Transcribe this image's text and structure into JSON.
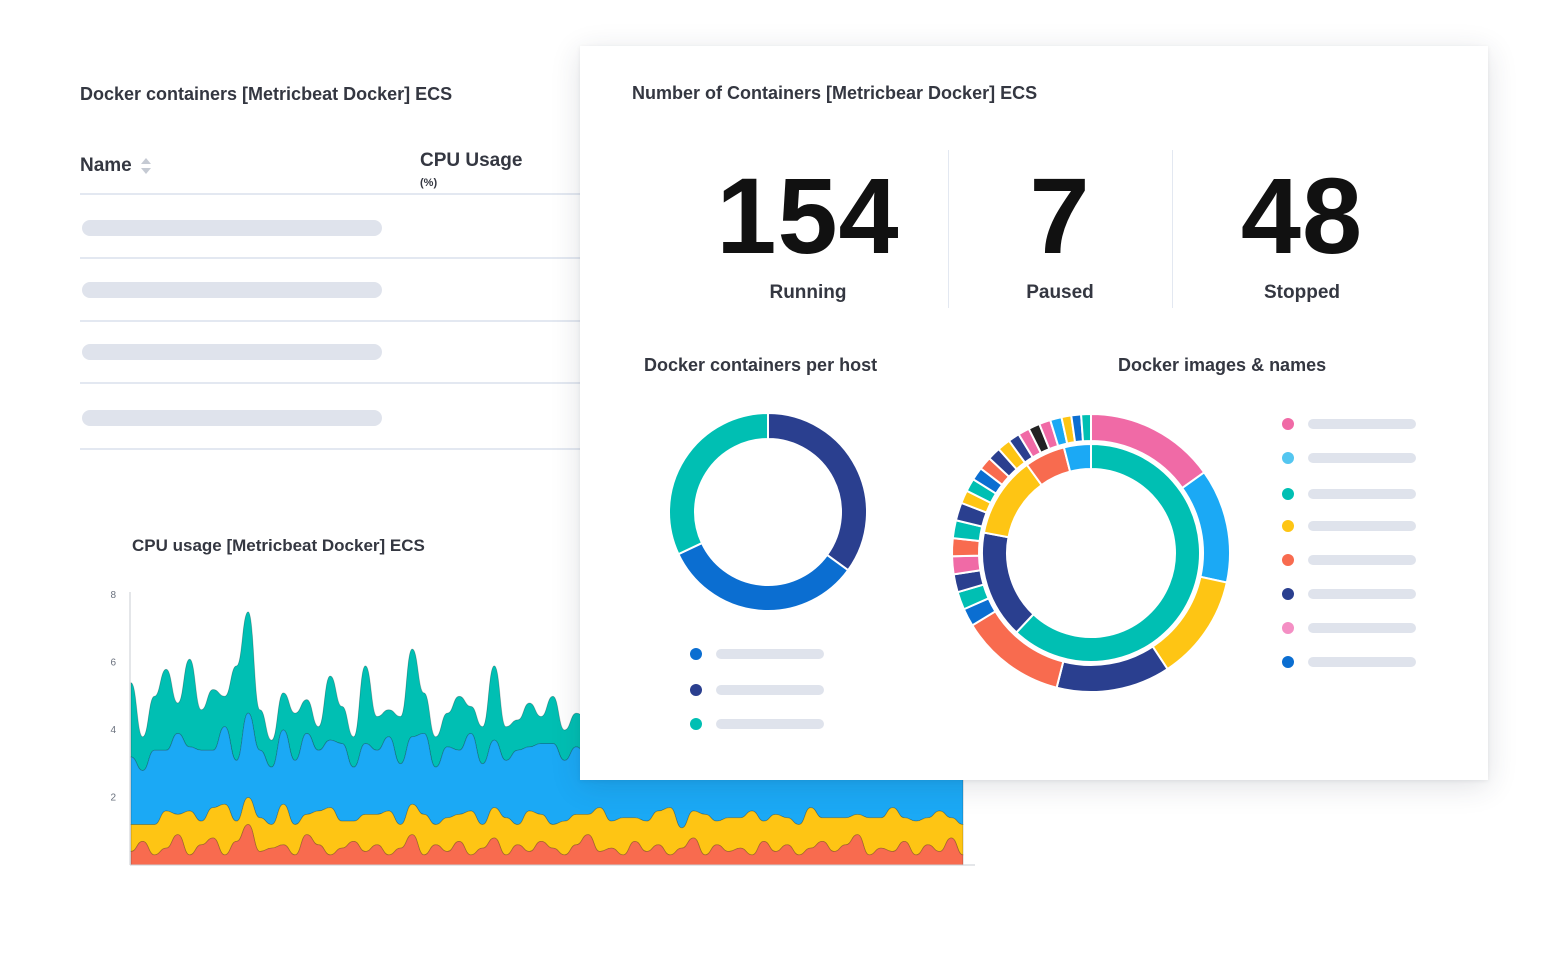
{
  "table_panel": {
    "title": "Docker containers [Metricbeat Docker] ECS",
    "columns": [
      {
        "label": "Name"
      },
      {
        "label": "CPU Usage",
        "sublabel": "(%)"
      }
    ]
  },
  "cpu_panel": {
    "title": "CPU usage [Metricbeat Docker] ECS"
  },
  "card": {
    "title": "Number of Containers [Metricbear Docker] ECS",
    "metrics": [
      {
        "value": "154",
        "label": "Running"
      },
      {
        "value": "7",
        "label": "Paused"
      },
      {
        "value": "48",
        "label": "Stopped"
      }
    ],
    "per_host_title": "Docker containers per host",
    "images_title": "Docker images & names"
  },
  "colors": {
    "teal": "#00bfb3",
    "blue": "#1ba9f5",
    "yellow": "#fec514",
    "orange": "#f86b4f",
    "navy": "#2a3f8f",
    "pink": "#f06aa6",
    "mid_blue": "#0b6ed1",
    "light_blue": "#54c6f0"
  },
  "chart_data": [
    {
      "type": "area",
      "title": "CPU usage [Metricbeat Docker] ECS",
      "stacked": true,
      "yticks": [
        2,
        4,
        6,
        8
      ],
      "ylim": [
        0,
        8
      ],
      "series": [
        {
          "color": "#f86b4f",
          "values": [
            0.4,
            0.7,
            0.3,
            0.5,
            0.9,
            0.3,
            0.6,
            0.8,
            0.3,
            0.7,
            1.2,
            0.4,
            0.5,
            0.6,
            0.3,
            0.9,
            0.6,
            0.3,
            0.5,
            0.7,
            0.4,
            0.6,
            0.3,
            0.5,
            0.9,
            0.3,
            0.6,
            0.4,
            0.7,
            0.3,
            0.5,
            0.8,
            0.3,
            0.6,
            0.4,
            0.7,
            0.5,
            0.3,
            0.6,
            0.9,
            0.4,
            0.5,
            0.3,
            0.7,
            0.4,
            0.6,
            0.3,
            0.5,
            0.8,
            0.3,
            0.6,
            0.4,
            0.5,
            0.3,
            0.7,
            0.4,
            0.6,
            0.3,
            0.5,
            0.7,
            0.4,
            0.6,
            0.9,
            0.3,
            0.5,
            0.4,
            0.7,
            0.3,
            0.6,
            0.4,
            0.8,
            0.3
          ]
        },
        {
          "color": "#fec514",
          "values": [
            0.8,
            0.5,
            0.9,
            1.1,
            0.6,
            1.3,
            0.7,
            0.9,
            1.5,
            0.6,
            0.8,
            1.0,
            0.7,
            1.2,
            0.9,
            0.6,
            1.0,
            1.4,
            0.8,
            0.6,
            1.1,
            0.9,
            1.3,
            0.7,
            0.9,
            1.2,
            0.6,
            1.0,
            0.8,
            1.3,
            0.7,
            0.9,
            1.1,
            0.6,
            1.2,
            0.8,
            0.7,
            1.0,
            0.9,
            0.6,
            1.3,
            0.8,
            1.1,
            0.7,
            0.9,
            1.0,
            1.4,
            0.6,
            0.8,
            1.2,
            0.7,
            1.0,
            0.9,
            1.3,
            0.6,
            1.1,
            0.8,
            0.9,
            1.2,
            0.7,
            1.0,
            0.8,
            0.6,
            1.1,
            0.9,
            1.3,
            0.7,
            1.0,
            0.8,
            1.2,
            0.6,
            0.9
          ]
        },
        {
          "color": "#1ba9f5",
          "values": [
            2.0,
            1.6,
            2.2,
            1.8,
            2.4,
            1.9,
            2.1,
            1.7,
            2.3,
            1.8,
            2.5,
            2.0,
            1.7,
            2.2,
            1.9,
            2.4,
            1.8,
            2.0,
            2.3,
            1.6,
            2.1,
            1.9,
            2.2,
            1.8,
            2.0,
            2.4,
            1.7,
            2.1,
            1.9,
            2.3,
            1.8,
            2.0,
            1.7,
            2.2,
            1.9,
            2.1,
            2.4,
            1.8,
            2.0,
            1.7,
            2.3,
            1.9,
            2.1,
            1.8,
            2.2,
            2.0,
            1.7,
            2.3,
            1.9,
            2.1,
            1.8,
            2.0,
            2.4,
            1.7,
            2.2,
            1.9,
            2.1,
            1.8,
            2.0,
            2.3,
            1.7,
            2.1,
            1.9,
            2.2,
            1.8,
            2.0,
            2.4,
            1.7,
            2.1,
            1.9,
            2.2,
            1.8
          ]
        },
        {
          "color": "#00bfb3",
          "values": [
            2.2,
            1.0,
            1.6,
            2.4,
            0.9,
            2.6,
            1.2,
            1.8,
            0.9,
            2.8,
            3.0,
            1.2,
            0.8,
            1.1,
            1.4,
            1.0,
            0.7,
            1.9,
            1.1,
            0.9,
            2.3,
            1.0,
            0.8,
            1.4,
            2.6,
            1.2,
            0.9,
            1.0,
            1.6,
            0.8,
            1.1,
            2.2,
            1.0,
            0.9,
            1.3,
            0.8,
            1.4,
            0.9,
            1.0,
            1.1,
            0.8,
            1.2,
            0.9,
            0.8,
            1.0,
            1.1,
            0.9,
            2.1,
            1.0,
            0.8,
            1.3,
            0.9,
            1.1,
            0.8,
            1.6,
            0.9,
            1.0,
            1.2,
            0.8,
            1.0,
            0.9,
            1.1,
            0.8,
            1.3,
            0.9,
            1.0,
            1.2,
            0.8,
            1.1,
            0.9,
            1.0,
            0.8
          ]
        }
      ]
    },
    {
      "type": "pie",
      "title": "Docker containers per host",
      "values": [
        35,
        33,
        32
      ],
      "colors": [
        "#2a3f8f",
        "#0b6ed1",
        "#00bfb3"
      ]
    },
    {
      "type": "pie",
      "title": "Docker images & names",
      "rings": [
        {
          "values": [
            62,
            16,
            12,
            6,
            4
          ],
          "colors": [
            "#00bfb3",
            "#2a3f8f",
            "#fec514",
            "#f86b4f",
            "#1ba9f5"
          ]
        },
        {
          "values": [
            16,
            14,
            13,
            14,
            13,
            2.2,
            2.2,
            2.2,
            2.2,
            2.2,
            2.2,
            2.2,
            1.6,
            1.6,
            1.6,
            1.6,
            1.6,
            1.6,
            1.4,
            1.4,
            1.4,
            1.4,
            1.4,
            1.2,
            1.2,
            1.2
          ],
          "colors": [
            "#f06aa6",
            "#1ba9f5",
            "#fec514",
            "#2a3f8f",
            "#f86b4f",
            "#0b6ed1",
            "#00bfb3",
            "#2a3f8f",
            "#f06aa6",
            "#f86b4f",
            "#00bfb3",
            "#2a3f8f",
            "#fec514",
            "#00bfb3",
            "#0b6ed1",
            "#f86b4f",
            "#2a3f8f",
            "#fec514",
            "#2a3f8f",
            "#f06aa6",
            "#222222",
            "#f06aa6",
            "#1ba9f5",
            "#fec514",
            "#0b6ed1",
            "#00bfb3"
          ]
        }
      ]
    }
  ]
}
